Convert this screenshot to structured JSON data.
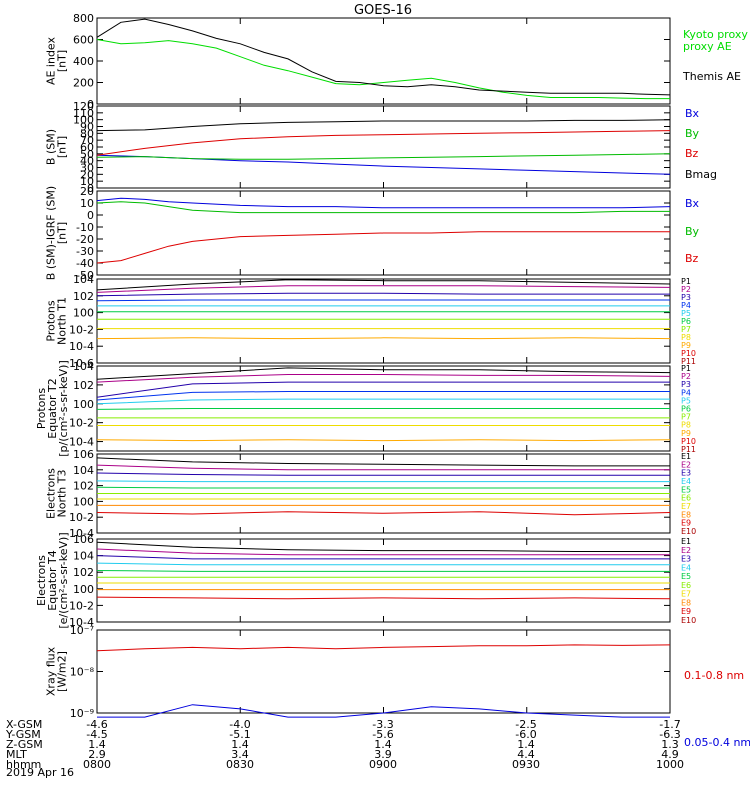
{
  "title": "GOES-16",
  "date": "2019 Apr 16",
  "footer_rows": [
    {
      "label": "X-GSM",
      "values": [
        "-4.6",
        "-4.0",
        "-3.3",
        "-2.5",
        "-1.7"
      ]
    },
    {
      "label": "Y-GSM",
      "values": [
        "-4.5",
        "-5.1",
        "-5.6",
        "-6.0",
        "-6.3"
      ]
    },
    {
      "label": "Z-GSM",
      "values": [
        "1.4",
        "1.4",
        "1.4",
        "1.4",
        "1.3"
      ]
    },
    {
      "label": "MLT",
      "values": [
        "2.9",
        "3.4",
        "3.9",
        "4.4",
        "4.9"
      ]
    },
    {
      "label": "hhmm",
      "values": [
        "0800",
        "0830",
        "0900",
        "0930",
        "1000"
      ]
    }
  ],
  "chart_data": [
    {
      "type": "line",
      "panel": "ae",
      "log": false,
      "ylabel": [
        "AE index",
        "[nT]"
      ],
      "ylim": [
        0,
        800
      ],
      "yticks": [
        0,
        200,
        400,
        600,
        800
      ],
      "x": [
        0,
        5,
        10,
        15,
        20,
        25,
        30,
        35,
        40,
        45,
        50,
        55,
        60,
        65,
        70,
        75,
        80,
        85,
        90,
        95,
        100,
        105,
        110,
        115,
        120
      ],
      "series": [
        {
          "name": "Kyoto proxy AE",
          "color": "#00dd00",
          "values": [
            600,
            560,
            570,
            590,
            560,
            520,
            440,
            360,
            310,
            250,
            190,
            180,
            200,
            220,
            240,
            200,
            150,
            110,
            80,
            60,
            60,
            60,
            55,
            50,
            50
          ]
        },
        {
          "name": "Themis AE",
          "color": "#000000",
          "values": [
            620,
            760,
            790,
            740,
            680,
            610,
            560,
            480,
            420,
            300,
            210,
            200,
            170,
            160,
            180,
            160,
            130,
            120,
            110,
            100,
            100,
            100,
            100,
            90,
            85
          ]
        }
      ]
    },
    {
      "type": "line",
      "panel": "bsm",
      "log": false,
      "ylabel": [
        "B (SM)",
        "[nT]"
      ],
      "ylim": [
        0,
        120
      ],
      "yticks": [
        0,
        10,
        20,
        30,
        40,
        50,
        60,
        70,
        80,
        90,
        100,
        110,
        120
      ],
      "x": [
        0,
        10,
        20,
        30,
        40,
        50,
        60,
        70,
        80,
        90,
        100,
        110,
        120
      ],
      "series": [
        {
          "name": "Bx",
          "color": "#0000dd",
          "values": [
            48,
            46,
            43,
            40,
            38,
            35,
            32,
            30,
            28,
            26,
            24,
            22,
            20
          ]
        },
        {
          "name": "By",
          "color": "#00bb00",
          "values": [
            45,
            46,
            43,
            42,
            42,
            43,
            44,
            45,
            46,
            47,
            48,
            49,
            50
          ]
        },
        {
          "name": "Bz",
          "color": "#dd0000",
          "values": [
            48,
            58,
            66,
            72,
            75,
            77,
            78,
            79,
            80,
            81,
            82,
            83,
            84
          ]
        },
        {
          "name": "Bmag",
          "color": "#000000",
          "values": [
            84,
            85,
            90,
            94,
            96,
            97,
            98,
            98,
            98,
            98,
            99,
            99,
            100
          ]
        }
      ]
    },
    {
      "type": "line",
      "panel": "digrf",
      "log": false,
      "ylabel": [
        "B (SM)-IGRF (SM)",
        "[nT]"
      ],
      "ylim": [
        -50,
        20
      ],
      "yticks": [
        -50,
        -40,
        -30,
        -20,
        -10,
        0,
        10,
        20
      ],
      "x": [
        0,
        5,
        10,
        15,
        20,
        30,
        40,
        50,
        60,
        70,
        80,
        90,
        100,
        110,
        120
      ],
      "series": [
        {
          "name": "Bx",
          "color": "#0000dd",
          "values": [
            12,
            14,
            13,
            11,
            10,
            8,
            7,
            7,
            6,
            6,
            6,
            6,
            6,
            6,
            7
          ]
        },
        {
          "name": "By",
          "color": "#00bb00",
          "values": [
            10,
            11,
            10,
            7,
            4,
            2,
            2,
            2,
            2,
            2,
            2,
            2,
            2,
            3,
            3
          ]
        },
        {
          "name": "Bz",
          "color": "#dd0000",
          "values": [
            -40,
            -38,
            -32,
            -26,
            -22,
            -18,
            -17,
            -16,
            -15,
            -15,
            -14,
            -14,
            -14,
            -14,
            -14
          ]
        }
      ]
    },
    {
      "type": "line",
      "panel": "p1",
      "log": true,
      "ylabel": [
        "Protons",
        "North T1"
      ],
      "ylim_log": [
        -6,
        4
      ],
      "yticks_log": [
        4,
        2,
        0,
        -2,
        -4,
        -6
      ],
      "x": [
        0,
        20,
        40,
        60,
        80,
        100,
        120
      ],
      "series": [
        {
          "name": "P1",
          "color": "#000000",
          "values": [
            2.7,
            3.4,
            3.9,
            3.8,
            3.8,
            3.6,
            3.4
          ]
        },
        {
          "name": "P2",
          "color": "#aa0088",
          "values": [
            2.4,
            2.9,
            3.2,
            3.2,
            3.2,
            3.1,
            3.0
          ]
        },
        {
          "name": "P3",
          "color": "#2200aa",
          "values": [
            2.0,
            2.2,
            2.3,
            2.3,
            2.2,
            2.2,
            2.2
          ]
        },
        {
          "name": "P4",
          "color": "#0033ee",
          "values": [
            1.4,
            1.5,
            1.5,
            1.5,
            1.5,
            1.5,
            1.5
          ]
        },
        {
          "name": "P5",
          "color": "#22ccee",
          "values": [
            0.8,
            0.8,
            0.8,
            0.8,
            0.8,
            0.8,
            0.8
          ]
        },
        {
          "name": "P6",
          "color": "#00cc44",
          "values": [
            0.1,
            0.1,
            0.1,
            0.1,
            0.1,
            0.1,
            0.1
          ]
        },
        {
          "name": "P7",
          "color": "#88ee00",
          "values": [
            -0.8,
            -0.8,
            -0.8,
            -0.8,
            -0.8,
            -0.8,
            -0.8
          ]
        },
        {
          "name": "P8",
          "color": "#eedd00",
          "values": [
            -1.9,
            -1.9,
            -1.9,
            -1.9,
            -1.9,
            -1.9,
            -1.9
          ]
        },
        {
          "name": "P9",
          "color": "#ffaa00",
          "values": [
            -3.1,
            -3.0,
            -3.1,
            -3.0,
            -3.1,
            -3.0,
            -3.1
          ]
        }
      ]
    },
    {
      "type": "line",
      "panel": "p2",
      "log": true,
      "ylabel": [
        "Protons",
        "Equator T2",
        "[p/(cm²-s-sr-keV)]"
      ],
      "ylim_log": [
        -5,
        4
      ],
      "yticks_log": [
        4,
        2,
        0,
        -2,
        -4
      ],
      "x": [
        0,
        20,
        40,
        60,
        80,
        100,
        120
      ],
      "series": [
        {
          "name": "P1",
          "color": "#000000",
          "values": [
            2.6,
            3.2,
            3.8,
            3.6,
            3.6,
            3.4,
            3.3
          ]
        },
        {
          "name": "P2",
          "color": "#aa0088",
          "values": [
            2.3,
            2.8,
            3.1,
            3.1,
            3.0,
            3.0,
            2.9
          ]
        },
        {
          "name": "P3",
          "color": "#2200aa",
          "values": [
            0.7,
            2.1,
            2.3,
            2.3,
            2.3,
            2.3,
            2.3
          ]
        },
        {
          "name": "P4",
          "color": "#0033ee",
          "values": [
            0.4,
            1.2,
            1.3,
            1.3,
            1.3,
            1.3,
            1.3
          ]
        },
        {
          "name": "P5",
          "color": "#22ccee",
          "values": [
            0.0,
            0.4,
            0.5,
            0.5,
            0.5,
            0.5,
            0.5
          ]
        },
        {
          "name": "P6",
          "color": "#00cc44",
          "values": [
            -0.6,
            -0.5,
            -0.5,
            -0.5,
            -0.5,
            -0.5,
            -0.5
          ]
        },
        {
          "name": "P7",
          "color": "#88ee00",
          "values": [
            -1.5,
            -1.5,
            -1.5,
            -1.5,
            -1.5,
            -1.5,
            -1.5
          ]
        },
        {
          "name": "P8",
          "color": "#eedd00",
          "values": [
            -2.3,
            -2.3,
            -2.3,
            -2.3,
            -2.3,
            -2.3,
            -2.3
          ]
        },
        {
          "name": "P9",
          "color": "#ffaa00",
          "values": [
            -3.8,
            -3.9,
            -3.8,
            -3.9,
            -3.8,
            -3.9,
            -3.8
          ]
        }
      ]
    },
    {
      "type": "line",
      "panel": "e1",
      "log": true,
      "ylabel": [
        "Electrons",
        "North T3"
      ],
      "ylim_log": [
        -4,
        6
      ],
      "yticks_log": [
        6,
        4,
        2,
        0,
        -2,
        -4
      ],
      "x": [
        0,
        20,
        40,
        60,
        80,
        100,
        120
      ],
      "series": [
        {
          "name": "E1",
          "color": "#000000",
          "values": [
            5.5,
            5.0,
            4.8,
            4.7,
            4.6,
            4.5,
            4.5
          ]
        },
        {
          "name": "E2",
          "color": "#aa0088",
          "values": [
            4.6,
            4.2,
            4.0,
            4.0,
            4.0,
            4.0,
            4.0
          ]
        },
        {
          "name": "E3",
          "color": "#2200aa",
          "values": [
            3.6,
            3.4,
            3.3,
            3.3,
            3.3,
            3.3,
            3.3
          ]
        },
        {
          "name": "E4",
          "color": "#22ccee",
          "values": [
            2.6,
            2.5,
            2.5,
            2.5,
            2.5,
            2.5,
            2.5
          ]
        },
        {
          "name": "E5",
          "color": "#00cc44",
          "values": [
            1.8,
            1.7,
            1.7,
            1.7,
            1.7,
            1.7,
            1.7
          ]
        },
        {
          "name": "E6",
          "color": "#88ee00",
          "values": [
            1.0,
            1.0,
            1.0,
            1.0,
            1.0,
            1.0,
            1.0
          ]
        },
        {
          "name": "E7",
          "color": "#eedd00",
          "values": [
            0.3,
            0.3,
            0.3,
            0.3,
            0.3,
            0.3,
            0.3
          ]
        },
        {
          "name": "E8",
          "color": "#ff8800",
          "values": [
            -0.5,
            -0.5,
            -0.5,
            -0.5,
            -0.5,
            -0.5,
            -0.5
          ]
        },
        {
          "name": "E9",
          "color": "#dd0000",
          "values": [
            -1.4,
            -1.6,
            -1.3,
            -1.5,
            -1.3,
            -1.7,
            -1.4
          ]
        }
      ]
    },
    {
      "type": "line",
      "panel": "e2",
      "log": true,
      "ylabel": [
        "Electrons",
        "Equator T4",
        "[e/(cm²-s-sr-keV)]"
      ],
      "ylim_log": [
        -4,
        6
      ],
      "yticks_log": [
        6,
        4,
        2,
        0,
        -2,
        -4
      ],
      "x": [
        0,
        20,
        40,
        60,
        80,
        100,
        120
      ],
      "series": [
        {
          "name": "E1",
          "color": "#000000",
          "values": [
            5.6,
            5.0,
            4.7,
            4.6,
            4.6,
            4.5,
            4.5
          ]
        },
        {
          "name": "E2",
          "color": "#aa0088",
          "values": [
            4.8,
            4.3,
            4.1,
            4.1,
            4.1,
            4.1,
            4.1
          ]
        },
        {
          "name": "E3",
          "color": "#2200aa",
          "values": [
            4.0,
            3.6,
            3.6,
            3.6,
            3.6,
            3.6,
            3.6
          ]
        },
        {
          "name": "E4",
          "color": "#22ccee",
          "values": [
            3.1,
            2.9,
            2.9,
            2.9,
            2.9,
            2.9,
            2.9
          ]
        },
        {
          "name": "E5",
          "color": "#00cc44",
          "values": [
            2.2,
            2.1,
            2.1,
            2.1,
            2.1,
            2.1,
            2.1
          ]
        },
        {
          "name": "E6",
          "color": "#88ee00",
          "values": [
            1.4,
            1.4,
            1.4,
            1.4,
            1.4,
            1.4,
            1.4
          ]
        },
        {
          "name": "E7",
          "color": "#eedd00",
          "values": [
            0.7,
            0.7,
            0.7,
            0.7,
            0.7,
            0.7,
            0.7
          ]
        },
        {
          "name": "E8",
          "color": "#ff8800",
          "values": [
            -0.1,
            -0.1,
            -0.1,
            -0.1,
            -0.1,
            -0.1,
            -0.1
          ]
        },
        {
          "name": "E9",
          "color": "#dd0000",
          "values": [
            -1.0,
            -1.1,
            -1.2,
            -1.1,
            -1.2,
            -1.1,
            -1.2
          ]
        }
      ]
    },
    {
      "type": "line",
      "panel": "xray",
      "log": true,
      "ylabel": [
        "Xray flux",
        "[W/m2]"
      ],
      "ylim_log": [
        -9,
        -7
      ],
      "ytick_labels": [
        "10⁻⁷",
        "10⁻⁸",
        "10⁻⁹"
      ],
      "x": [
        0,
        10,
        20,
        30,
        40,
        50,
        60,
        70,
        80,
        90,
        100,
        110,
        120
      ],
      "series": [
        {
          "name": "0.1-0.8 nm",
          "color": "#dd0000",
          "values": [
            -7.5,
            -7.45,
            -7.42,
            -7.45,
            -7.42,
            -7.45,
            -7.42,
            -7.4,
            -7.38,
            -7.38,
            -7.36,
            -7.37,
            -7.36
          ]
        },
        {
          "name": "0.05-0.4 nm",
          "color": "#0000dd",
          "values": [
            -9.1,
            -9.1,
            -8.8,
            -8.9,
            -9.1,
            -9.1,
            -9.0,
            -8.85,
            -8.9,
            -9.0,
            -9.05,
            -9.1,
            -9.1
          ]
        }
      ]
    }
  ]
}
